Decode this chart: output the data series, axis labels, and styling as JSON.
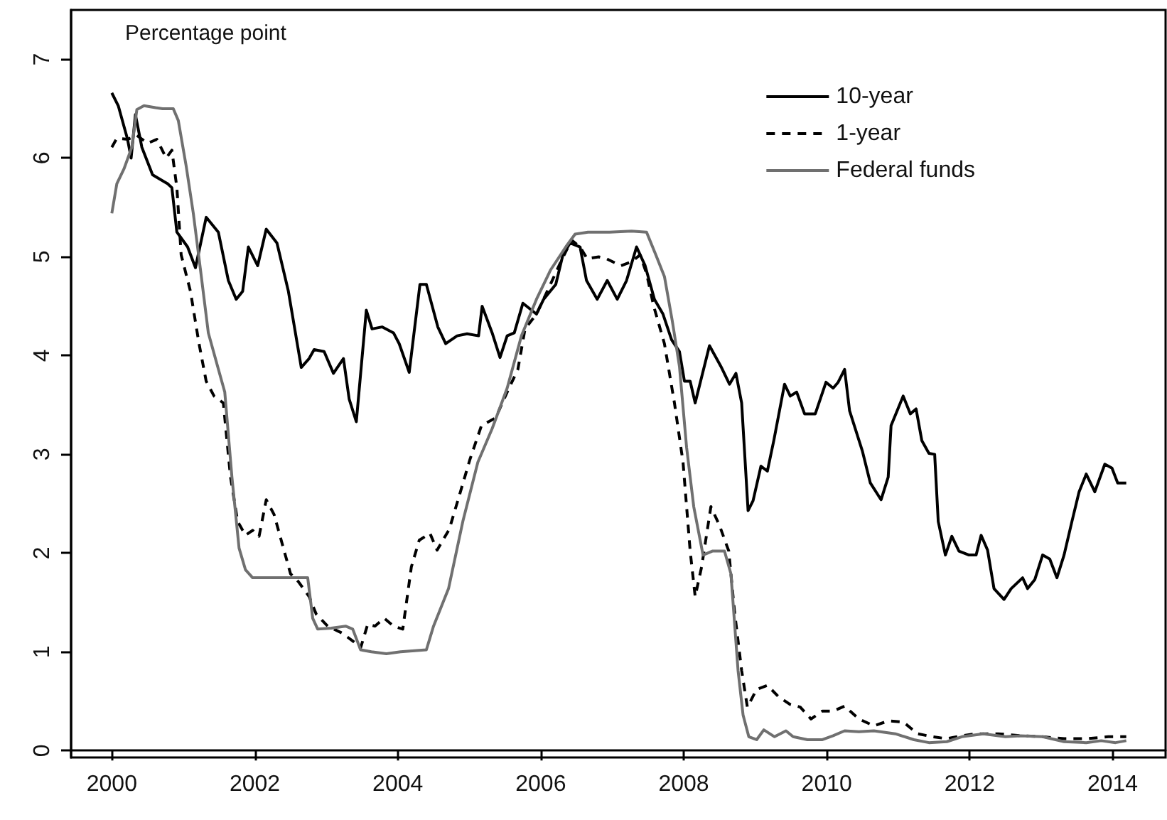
{
  "chart_data": {
    "type": "line",
    "annotations": [
      "Percentage point"
    ],
    "xlim": [
      1999.43,
      2014.74
    ],
    "xticks": [
      2000,
      2002,
      2004,
      2006,
      2008,
      2010,
      2012,
      2014
    ],
    "ylim": [
      -0.07,
      7.5
    ],
    "yticks": [
      0,
      1,
      2,
      3,
      4,
      5,
      6,
      7
    ],
    "legend": "top right",
    "marker": "none",
    "series": [
      {
        "name": "10-year",
        "color": "#000000",
        "line_style": "solid",
        "x": [
          2000.0,
          2000.09,
          2000.22,
          2000.27,
          2000.33,
          2000.42,
          2000.57,
          2000.78,
          2000.84,
          2000.91,
          2001.06,
          2001.17,
          2001.32,
          2001.49,
          2001.63,
          2001.74,
          2001.83,
          2001.91,
          2002.04,
          2002.16,
          2002.31,
          2002.47,
          2002.65,
          2002.76,
          2002.83,
          2002.97,
          2003.1,
          2003.24,
          2003.32,
          2003.42,
          2003.56,
          2003.64,
          2003.78,
          2003.94,
          2004.02,
          2004.16,
          2004.31,
          2004.4,
          2004.56,
          2004.67,
          2004.83,
          2004.97,
          2005.13,
          2005.18,
          2005.32,
          2005.43,
          2005.53,
          2005.63,
          2005.75,
          2005.94,
          2006.04,
          2006.21,
          2006.31,
          2006.41,
          2006.55,
          2006.64,
          2006.79,
          2006.93,
          2007.07,
          2007.2,
          2007.34,
          2007.46,
          2007.59,
          2007.71,
          2007.83,
          2007.94,
          2008.01,
          2008.09,
          2008.16,
          2008.36,
          2008.52,
          2008.64,
          2008.73,
          2008.81,
          2008.9,
          2008.97,
          2009.08,
          2009.17,
          2009.26,
          2009.41,
          2009.49,
          2009.58,
          2009.69,
          2009.84,
          2009.99,
          2010.09,
          2010.16,
          2010.25,
          2010.32,
          2010.5,
          2010.61,
          2010.76,
          2010.86,
          2010.9,
          2011.07,
          2011.17,
          2011.25,
          2011.33,
          2011.43,
          2011.51,
          2011.56,
          2011.66,
          2011.75,
          2011.85,
          2011.99,
          2012.09,
          2012.16,
          2012.25,
          2012.34,
          2012.48,
          2012.58,
          2012.74,
          2012.81,
          2012.91,
          2013.02,
          2013.12,
          2013.22,
          2013.32,
          2013.43,
          2013.53,
          2013.63,
          2013.75,
          2013.89,
          2013.99,
          2014.07,
          2014.19
        ],
        "values": [
          6.66,
          6.53,
          6.19,
          6.0,
          6.44,
          6.11,
          5.83,
          5.74,
          5.7,
          5.25,
          5.1,
          4.89,
          5.4,
          5.25,
          4.76,
          4.57,
          4.65,
          5.1,
          4.91,
          5.28,
          5.14,
          4.65,
          3.88,
          3.97,
          4.06,
          4.04,
          3.82,
          3.97,
          3.56,
          3.33,
          4.46,
          4.27,
          4.29,
          4.23,
          4.12,
          3.83,
          4.72,
          4.72,
          4.29,
          4.12,
          4.2,
          4.22,
          4.2,
          4.5,
          4.23,
          3.98,
          4.2,
          4.23,
          4.53,
          4.42,
          4.57,
          4.72,
          5.02,
          5.14,
          5.1,
          4.76,
          4.57,
          4.76,
          4.57,
          4.76,
          5.1,
          4.91,
          4.57,
          4.42,
          4.16,
          4.04,
          3.74,
          3.74,
          3.52,
          4.1,
          3.89,
          3.71,
          3.82,
          3.52,
          2.43,
          2.53,
          2.88,
          2.83,
          3.14,
          3.71,
          3.59,
          3.63,
          3.41,
          3.41,
          3.73,
          3.67,
          3.73,
          3.86,
          3.44,
          3.03,
          2.71,
          2.54,
          2.77,
          3.29,
          3.59,
          3.41,
          3.46,
          3.14,
          3.01,
          3.0,
          2.32,
          1.98,
          2.17,
          2.02,
          1.98,
          1.98,
          2.18,
          2.03,
          1.64,
          1.53,
          1.64,
          1.75,
          1.64,
          1.73,
          1.98,
          1.94,
          1.75,
          1.98,
          2.32,
          2.62,
          2.8,
          2.62,
          2.9,
          2.86,
          2.71,
          2.71
        ]
      },
      {
        "name": "1-year",
        "color": "#000000",
        "line_style": "dashed",
        "x": [
          2000.0,
          2000.07,
          2000.22,
          2000.35,
          2000.5,
          2000.63,
          2000.76,
          2000.84,
          2000.91,
          2000.97,
          2001.1,
          2001.22,
          2001.32,
          2001.43,
          2001.56,
          2001.66,
          2001.76,
          2001.87,
          2001.97,
          2002.06,
          2002.16,
          2002.27,
          2002.4,
          2002.5,
          2002.61,
          2002.76,
          2002.86,
          2003.02,
          2003.22,
          2003.37,
          2003.48,
          2003.58,
          2003.68,
          2003.81,
          2003.94,
          2004.07,
          2004.19,
          2004.3,
          2004.45,
          2004.55,
          2004.72,
          2004.86,
          2005.01,
          2005.17,
          2005.37,
          2005.53,
          2005.68,
          2005.78,
          2005.94,
          2006.09,
          2006.3,
          2006.43,
          2006.55,
          2006.65,
          2006.81,
          2006.92,
          2007.12,
          2007.27,
          2007.39,
          2007.48,
          2007.58,
          2007.73,
          2007.87,
          2007.99,
          2008.09,
          2008.16,
          2008.25,
          2008.38,
          2008.5,
          2008.63,
          2008.71,
          2008.81,
          2008.89,
          2009.02,
          2009.17,
          2009.32,
          2009.48,
          2009.63,
          2009.78,
          2009.94,
          2010.09,
          2010.25,
          2010.45,
          2010.66,
          2010.86,
          2011.07,
          2011.27,
          2011.48,
          2011.68,
          2011.89,
          2012.09,
          2012.4,
          2012.71,
          2013.02,
          2013.32,
          2013.63,
          2013.94,
          2014.19
        ],
        "values": [
          6.11,
          6.2,
          6.19,
          6.23,
          6.15,
          6.19,
          6.0,
          6.08,
          5.7,
          5.02,
          4.65,
          4.12,
          3.74,
          3.59,
          3.52,
          2.77,
          2.32,
          2.18,
          2.23,
          2.17,
          2.54,
          2.39,
          2.05,
          1.79,
          1.71,
          1.56,
          1.38,
          1.26,
          1.19,
          1.11,
          1.04,
          1.28,
          1.26,
          1.34,
          1.26,
          1.23,
          1.86,
          2.13,
          2.2,
          2.03,
          2.24,
          2.58,
          2.95,
          3.29,
          3.37,
          3.63,
          3.86,
          4.27,
          4.42,
          4.65,
          4.98,
          5.17,
          5.1,
          4.98,
          5.0,
          4.98,
          4.91,
          4.95,
          5.02,
          4.83,
          4.5,
          4.12,
          3.52,
          2.92,
          2.02,
          1.56,
          1.86,
          2.47,
          2.28,
          2.02,
          1.41,
          0.81,
          0.44,
          0.62,
          0.66,
          0.55,
          0.47,
          0.44,
          0.32,
          0.4,
          0.4,
          0.45,
          0.32,
          0.25,
          0.3,
          0.29,
          0.17,
          0.14,
          0.12,
          0.15,
          0.17,
          0.17,
          0.15,
          0.14,
          0.12,
          0.12,
          0.14,
          0.14
        ]
      },
      {
        "name": "Federal funds",
        "color": "#707070",
        "line_style": "solid",
        "x": [
          2000.0,
          2000.07,
          2000.17,
          2000.28,
          2000.35,
          2000.45,
          2000.61,
          2000.71,
          2000.86,
          2000.93,
          2001.04,
          2001.14,
          2001.24,
          2001.35,
          2001.48,
          2001.58,
          2001.68,
          2001.78,
          2001.87,
          2001.97,
          2002.14,
          2002.35,
          2002.55,
          2002.74,
          2002.81,
          2002.88,
          2003.07,
          2003.27,
          2003.37,
          2003.48,
          2003.63,
          2003.84,
          2004.04,
          2004.4,
          2004.5,
          2004.71,
          2004.91,
          2005.12,
          2005.32,
          2005.53,
          2005.73,
          2005.94,
          2006.14,
          2006.35,
          2006.48,
          2006.66,
          2006.96,
          2007.27,
          2007.48,
          2007.61,
          2007.73,
          2007.84,
          2007.94,
          2008.04,
          2008.14,
          2008.27,
          2008.4,
          2008.57,
          2008.66,
          2008.76,
          2008.83,
          2008.91,
          2009.02,
          2009.12,
          2009.27,
          2009.43,
          2009.53,
          2009.73,
          2009.94,
          2010.09,
          2010.25,
          2010.45,
          2010.66,
          2010.96,
          2011.22,
          2011.43,
          2011.68,
          2011.89,
          2012.19,
          2012.5,
          2012.71,
          2013.02,
          2013.32,
          2013.63,
          2013.84,
          2014.04,
          2014.19
        ],
        "values": [
          5.44,
          5.74,
          5.89,
          6.11,
          6.49,
          6.53,
          6.51,
          6.5,
          6.5,
          6.38,
          5.92,
          5.44,
          4.87,
          4.23,
          3.89,
          3.63,
          2.77,
          2.05,
          1.83,
          1.75,
          1.75,
          1.75,
          1.75,
          1.75,
          1.34,
          1.23,
          1.24,
          1.26,
          1.23,
          1.02,
          1.0,
          0.98,
          1.0,
          1.02,
          1.26,
          1.64,
          2.32,
          2.92,
          3.26,
          3.67,
          4.2,
          4.57,
          4.87,
          5.1,
          5.23,
          5.25,
          5.25,
          5.26,
          5.25,
          5.02,
          4.8,
          4.35,
          3.89,
          3.07,
          2.47,
          1.98,
          2.02,
          2.02,
          1.79,
          0.81,
          0.36,
          0.14,
          0.11,
          0.21,
          0.14,
          0.2,
          0.14,
          0.11,
          0.11,
          0.15,
          0.2,
          0.19,
          0.2,
          0.17,
          0.11,
          0.08,
          0.09,
          0.14,
          0.17,
          0.14,
          0.15,
          0.14,
          0.09,
          0.08,
          0.1,
          0.08,
          0.1
        ]
      }
    ]
  }
}
